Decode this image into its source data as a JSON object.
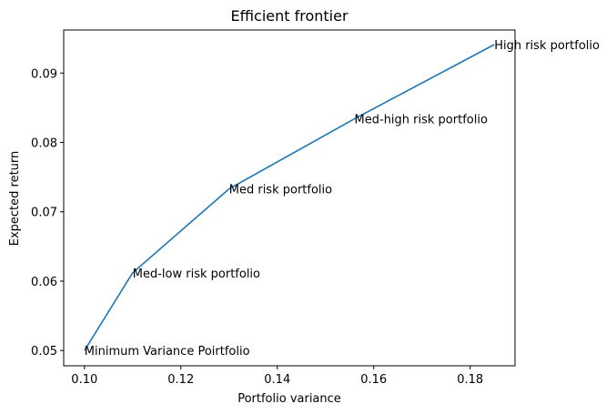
{
  "chart_data": {
    "type": "line",
    "title": "Efficient frontier",
    "xlabel": "Portfolio variance",
    "ylabel": "Expected return",
    "xlim": [
      0.0957,
      0.1893
    ],
    "ylim": [
      0.0478,
      0.0962
    ],
    "xticks": [
      0.1,
      0.12,
      0.14,
      0.16,
      0.18
    ],
    "xtick_labels": [
      "0.10",
      "0.12",
      "0.14",
      "0.16",
      "0.18"
    ],
    "yticks": [
      0.05,
      0.06,
      0.07,
      0.08,
      0.09
    ],
    "ytick_labels": [
      "0.05",
      "0.06",
      "0.07",
      "0.08",
      "0.09"
    ],
    "grid": false,
    "legend": null,
    "series": [
      {
        "color": "#1f77b4",
        "x": [
          0.1,
          0.11,
          0.13,
          0.156,
          0.185
        ],
        "y": [
          0.05,
          0.0612,
          0.0733,
          0.0834,
          0.0941
        ]
      }
    ],
    "annotations": [
      {
        "text": "Minimum Variance Poirtfolio",
        "x": 0.1,
        "y": 0.05
      },
      {
        "text": "Med-low risk portfolio",
        "x": 0.11,
        "y": 0.0612
      },
      {
        "text": "Med risk portfolio",
        "x": 0.13,
        "y": 0.0733
      },
      {
        "text": "Med-high risk portfolio",
        "x": 0.156,
        "y": 0.0834
      },
      {
        "text": "High risk portfolio",
        "x": 0.185,
        "y": 0.0941
      }
    ]
  }
}
